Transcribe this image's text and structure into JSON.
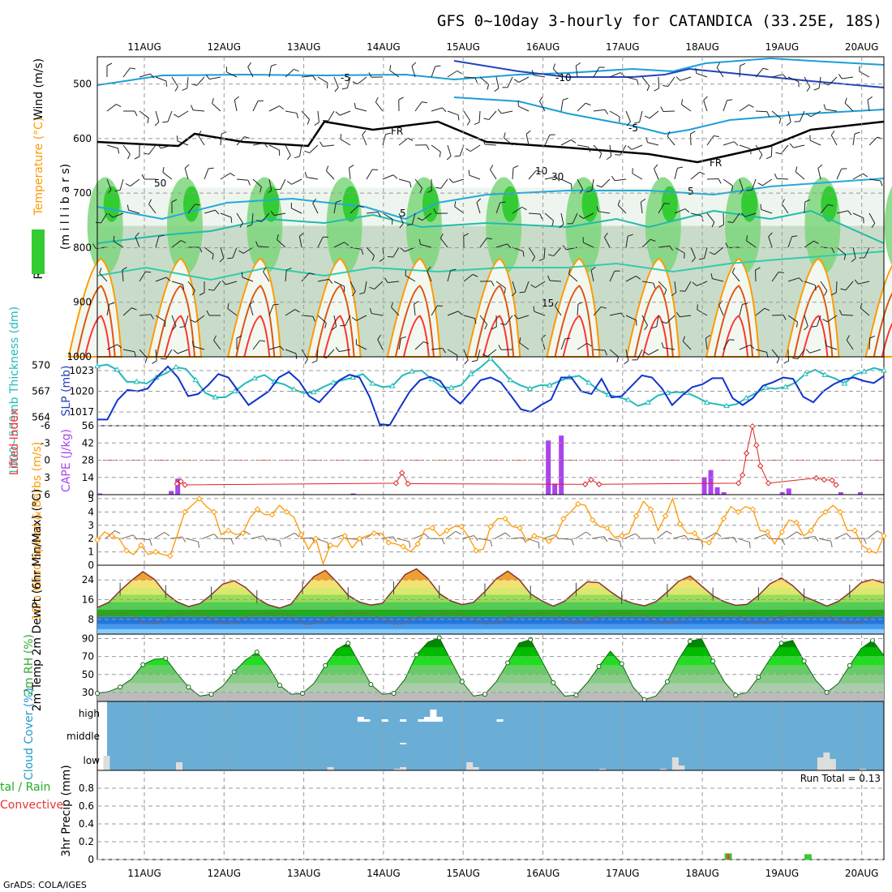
{
  "title": "GFS 0~10day 3-hourly for CATANDICA (33.25E, 18S)",
  "footer": "GrADS: COLA/IGES",
  "run_total": "Run Total = 0.13",
  "colors": {
    "green": "#33cc33",
    "red": "#ff3333",
    "orange": "#ff9900",
    "purple": "#aa44ee",
    "cyan": "#22bbbb",
    "blue": "#1133cc",
    "sky": "#6aaed6",
    "teal": "#3399cc"
  },
  "chart_data": [
    {
      "type": "heatmap",
      "title": "Wind / Temperature / RH cross-section",
      "dates": [
        "11AUG",
        "12AUG",
        "13AUG",
        "14AUG",
        "15AUG",
        "16AUG",
        "17AUG",
        "18AUG",
        "19AUG",
        "20AUG"
      ],
      "ylabel_parts": [
        "RH (%)",
        "Temperature (°C)",
        "Wind (m/s)"
      ],
      "ylabel_unit": "(m i l l i b a r s)",
      "y_ticks": [
        "500",
        "600",
        "700",
        "800",
        "900",
        "1000"
      ],
      "contour_labels": [
        "-5",
        "-10",
        "-5",
        "FR",
        "FR",
        "-5",
        "5",
        "10",
        "30",
        "50",
        "15"
      ],
      "ylim": [
        450,
        1000
      ]
    },
    {
      "type": "line",
      "ylabel_left": "1000~500mb Thickness (dm)",
      "ylabel_right": "SLP (mb)",
      "left_ticks": [
        "570",
        "567",
        "564"
      ],
      "right_ticks": [
        "1023",
        "1020",
        "1017"
      ],
      "series": [
        {
          "name": "SLP (mb)",
          "color": "#1133cc",
          "values": [
            1015.9,
            1015.9,
            1018.7,
            1020.2,
            1020.0,
            1020.4,
            1022.2,
            1023.6,
            1022.0,
            1019.3,
            1019.6,
            1020.9,
            1022.5,
            1022.0,
            1020.0,
            1018.0,
            1019.0,
            1020.0,
            1022.0,
            1022.8,
            1021.5,
            1019.3,
            1018.4,
            1020.0,
            1021.6,
            1022.4,
            1022.0,
            1019.2,
            1015.2,
            1015.1,
            1017.6,
            1020.0,
            1021.6,
            1022.1,
            1021.5,
            1019.4,
            1018.2,
            1019.9,
            1021.6,
            1022.0,
            1021.3,
            1019.4,
            1017.4,
            1017.0,
            1018.0,
            1018.8,
            1022.0,
            1022.0,
            1020.0,
            1019.6,
            1021.8,
            1019.1,
            1019.3,
            1020.8,
            1022.3,
            1022.0,
            1020.4,
            1018.0,
            1019.4,
            1020.6,
            1021.0,
            1021.9,
            1021.9,
            1019.0,
            1018.0,
            1019.0,
            1020.8,
            1021.3,
            1022.0,
            1021.8,
            1019.2,
            1018.4,
            1020.0,
            1021.0,
            1021.7,
            1022.0,
            1021.5,
            1021.2,
            1022.2
          ]
        },
        {
          "name": "Thickness (dm)",
          "color": "#22bbbb",
          "values": [
            569.9,
            570.1,
            569.5,
            568.1,
            568.1,
            567.9,
            568.6,
            569.1,
            569.8,
            569.6,
            568.3,
            566.8,
            566.3,
            566.3,
            567.0,
            567.9,
            568.5,
            568.9,
            568.1,
            567.8,
            567.2,
            566.8,
            566.9,
            567.5,
            568.0,
            568.3,
            568.6,
            569.0,
            567.9,
            567.5,
            567.6,
            568.8,
            569.3,
            569.4,
            568.4,
            567.5,
            567.4,
            567.7,
            569.0,
            569.8,
            570.8,
            569.6,
            568.3,
            567.7,
            567.3,
            567.7,
            567.7,
            568.2,
            568.6,
            568.8,
            568.0,
            567.1,
            566.6,
            566.3,
            566.0,
            565.3,
            565.7,
            566.5,
            566.8,
            566.9,
            566.8,
            566.3,
            565.7,
            565.5,
            565.3,
            565.5,
            566.2,
            566.8,
            567.4,
            567.3,
            567.5,
            568.0,
            569.0,
            569.5,
            568.9,
            568.5,
            567.9,
            568.9,
            569.3,
            569.7,
            569.4
          ]
        }
      ],
      "ylim_left": [
        563,
        571
      ],
      "ylim_right": [
        1015,
        1025
      ]
    },
    {
      "type": "bar",
      "ylabel_left": "Lifted Index",
      "ylabel_right": "CAPE (J/kg)",
      "left_ticks": [
        "-6",
        "-3",
        "0",
        "3",
        "6"
      ],
      "right_ticks": [
        "56",
        "42",
        "28",
        "14",
        "0"
      ],
      "cape_values": [
        1,
        0,
        0,
        0,
        0,
        0,
        0,
        0,
        0,
        0,
        0,
        3,
        13,
        0,
        0,
        0,
        0,
        0,
        0,
        0,
        0,
        0,
        0,
        0,
        0,
        0,
        0,
        0,
        0,
        0,
        0,
        0,
        0,
        0,
        0,
        0,
        0,
        0,
        0,
        1,
        0,
        0,
        0,
        0,
        0,
        0,
        0,
        0,
        0,
        0,
        0,
        0,
        0,
        0,
        0,
        0,
        0,
        0,
        0,
        0,
        0,
        0,
        0,
        0,
        0,
        0,
        0,
        0,
        0,
        44,
        9,
        48,
        0,
        0,
        0,
        0,
        0,
        0,
        0,
        0,
        0,
        0,
        0,
        0,
        0,
        0,
        0,
        0,
        0,
        0,
        0,
        0,
        0,
        14,
        20,
        6,
        2,
        0,
        0,
        0,
        0,
        0,
        0,
        0,
        0,
        2,
        5,
        0,
        0,
        0,
        0,
        0,
        0,
        0,
        2,
        0,
        0,
        2,
        0,
        0,
        0
      ],
      "li_points": [
        [
          4,
          4.1
        ],
        [
          4.2,
          3.7
        ],
        [
          4.4,
          4.3
        ],
        [
          15.0,
          4.0
        ],
        [
          15.3,
          2.2
        ],
        [
          15.6,
          4.1
        ],
        [
          24.5,
          4.2
        ],
        [
          24.8,
          3.4
        ],
        [
          25.2,
          4.2
        ],
        [
          32.2,
          4.0
        ],
        [
          32.4,
          2.6
        ],
        [
          32.6,
          -1.2
        ],
        [
          32.9,
          -5.9
        ],
        [
          33.1,
          -2.6
        ],
        [
          33.3,
          1.0
        ],
        [
          33.7,
          4.0
        ],
        [
          36.1,
          3.1
        ],
        [
          36.5,
          3.4
        ],
        [
          36.9,
          3.5
        ],
        [
          37.1,
          4.3
        ]
      ],
      "ylim_left": [
        6,
        -6
      ],
      "ylim_right": [
        0,
        56
      ]
    },
    {
      "type": "line",
      "ylabel_left": "10m Wind Speed & Barbs (m/s)",
      "y_ticks": [
        "5",
        "4",
        "3",
        "2",
        "1",
        "0"
      ],
      "series": [
        {
          "name": "10m Wind Speed",
          "color": "#ff9900",
          "values": [
            1.9,
            2.5,
            2.2,
            2.0,
            1.1,
            0.8,
            1.5,
            0.8,
            1.0,
            0.8,
            0.7,
            2.3,
            4.0,
            4.5,
            5.0,
            4.4,
            4.0,
            2.3,
            2.6,
            2.3,
            2.4,
            3.6,
            4.2,
            3.8,
            3.8,
            4.5,
            4.0,
            3.6,
            2.3,
            1.2,
            2.0,
            0.1,
            1.5,
            1.4,
            2.2,
            1.3,
            2.0,
            2.2,
            2.4,
            2.4,
            1.7,
            1.6,
            1.4,
            1.0,
            1.6,
            2.7,
            2.8,
            2.2,
            2.6,
            2.9,
            2.9,
            2.1,
            1.1,
            1.2,
            2.9,
            3.5,
            3.5,
            2.9,
            2.8,
            1.8,
            2.2,
            2.1,
            1.8,
            2.2,
            3.5,
            4.0,
            4.6,
            4.5,
            3.4,
            2.9,
            2.8,
            2.1,
            2.2,
            2.4,
            3.7,
            4.8,
            4.2,
            2.6,
            3.7,
            5.0,
            3.1,
            2.4,
            2.4,
            1.8,
            1.7,
            2.4,
            3.5,
            4.4,
            4.0,
            4.4,
            4.2,
            2.6,
            2.5,
            1.6,
            2.5,
            3.4,
            3.2,
            2.2,
            2.6,
            3.5,
            4.0,
            4.5,
            4.0,
            2.6,
            2.6,
            1.5,
            1.1,
            0.9,
            2.2
          ]
        }
      ]
    },
    {
      "type": "area",
      "ylabel_left": "2m Temp 2m DewPt (6hr Min/Max) (°C)",
      "y_ticks": [
        "24",
        "16",
        "8"
      ],
      "series": [
        {
          "name": "2m Temp",
          "values": [
            12.8,
            14.9,
            19.6,
            23.8,
            27.4,
            24.3,
            18.6,
            15.1,
            13.2,
            14.4,
            18.0,
            22.3,
            23.7,
            21.0,
            16.6,
            13.9,
            12.6,
            14.2,
            20.2,
            25.4,
            27.9,
            23.2,
            17.8,
            15.0,
            13.8,
            14.5,
            20.1,
            26.2,
            28.5,
            24.6,
            18.5,
            15.5,
            14.0,
            14.9,
            19.3,
            24.5,
            27.6,
            24.2,
            18.4,
            15.5,
            13.4,
            15.4,
            19.5,
            23.3,
            22.9,
            19.3,
            16.2,
            14.5,
            13.5,
            15.2,
            19.1,
            23.5,
            25.6,
            21.6,
            17.6,
            15.2,
            13.7,
            14.1,
            17.7,
            22.4,
            24.8,
            21.7,
            17.3,
            15.4,
            13.4,
            15.3,
            18.8,
            22.9,
            24.2,
            22.8
          ]
        },
        {
          "name": "2m DewPt",
          "values": [
            9.5,
            10.4,
            10.6,
            10.1,
            6.4,
            6.2,
            8.7,
            10.3,
            10.6,
            11.2,
            8.3,
            6.2,
            6.4,
            9.1,
            10.1,
            10.5,
            10.3,
            9.5,
            6.0,
            6.1,
            7.9,
            9.9,
            10.4,
            10.7,
            10.3,
            8.0,
            6.0,
            6.2,
            8.8,
            9.8,
            10.2,
            10.5,
            10.0,
            7.9,
            6.1,
            6.3,
            8.9,
            9.8,
            10.1,
            10.6,
            10.6,
            7.9,
            6.4,
            7.5,
            9.6,
            10.2,
            10.7,
            10.3,
            9.7,
            7.3,
            6.5,
            7.2,
            9.4,
            10.1,
            10.2,
            10.6,
            10.0,
            7.5,
            6.4,
            7.2,
            9.3,
            10.1,
            10.3,
            10.7,
            10.1,
            7.2,
            6.2,
            7.0,
            9.4,
            11.4
          ]
        }
      ],
      "ylim": [
        2,
        30
      ]
    },
    {
      "type": "area",
      "ylabel_left": "2m RH (%)",
      "y_ticks": [
        "90",
        "70",
        "50",
        "30"
      ],
      "values": [
        29,
        31,
        36,
        45,
        61,
        67,
        68,
        51,
        36,
        26,
        28,
        37,
        53,
        66,
        75,
        59,
        38,
        28,
        29,
        40,
        60,
        78,
        85,
        62,
        39,
        28,
        29,
        45,
        72,
        86,
        91,
        66,
        42,
        26,
        28,
        42,
        63,
        85,
        89,
        65,
        41,
        26,
        27,
        41,
        59,
        76,
        62,
        36,
        22,
        26,
        42,
        67,
        87,
        90,
        65,
        42,
        27,
        30,
        47,
        67,
        85,
        88,
        65,
        44,
        30,
        40,
        60,
        79,
        88,
        71
      ],
      "ylim": [
        20,
        95
      ]
    },
    {
      "type": "bar",
      "ylabel_left": "Cloud Cover (%)",
      "layer_labels": [
        "high",
        "middle",
        "low"
      ],
      "high_values": [
        0,
        0,
        0,
        0,
        0,
        0,
        0,
        0,
        0,
        0,
        0,
        0,
        0,
        0,
        0,
        0,
        0,
        0,
        0,
        0,
        0,
        0,
        0,
        0,
        0,
        0,
        0,
        0,
        0,
        0,
        0,
        0,
        0,
        0,
        0,
        0,
        0,
        0,
        0,
        0,
        0,
        0,
        0,
        2,
        1,
        0,
        0,
        1,
        0,
        0,
        1,
        0,
        0,
        1,
        2,
        5,
        2,
        0,
        0,
        0,
        0,
        0,
        0,
        0,
        0,
        0,
        1,
        0,
        0,
        0,
        0,
        0,
        0,
        0,
        0,
        0,
        0,
        0,
        0,
        0,
        0,
        0,
        0,
        0,
        0,
        0,
        0,
        0,
        0,
        0,
        0,
        0,
        0,
        0,
        0,
        0,
        0,
        0,
        0,
        0,
        0,
        0,
        0,
        0,
        0,
        0,
        0,
        0,
        0,
        0,
        0,
        0,
        0
      ],
      "middle_values": [
        0,
        0,
        0,
        0,
        0,
        0,
        0,
        0,
        0,
        0,
        0,
        0,
        0,
        0,
        0,
        0,
        0,
        0,
        0,
        0,
        0,
        0,
        0,
        0,
        0,
        0,
        0,
        0,
        0,
        0,
        0,
        0,
        0,
        0,
        0,
        0,
        0,
        0,
        0,
        0,
        0,
        0,
        0,
        0,
        0,
        0,
        0,
        0,
        0,
        0,
        2,
        0,
        0,
        0,
        0,
        0,
        0,
        0,
        0,
        0,
        0,
        0,
        0,
        0,
        0,
        0,
        0,
        0,
        0,
        0,
        0,
        0,
        0,
        0,
        0,
        0,
        0,
        0,
        0,
        0,
        0,
        0,
        0,
        0,
        0,
        0,
        0,
        0,
        0,
        0,
        0,
        0,
        0,
        0,
        0,
        0,
        0,
        0,
        0,
        0,
        0,
        0,
        0,
        0,
        0,
        0,
        0,
        0,
        0,
        0,
        0,
        0,
        0,
        0,
        0
      ],
      "low_values": [
        0,
        9,
        0,
        0,
        0,
        0,
        0,
        0,
        0,
        0,
        0,
        0,
        0,
        5,
        0,
        0,
        0,
        0,
        0,
        0,
        0,
        0,
        0,
        0,
        0,
        0,
        0,
        0,
        0,
        0,
        0,
        0,
        0,
        0,
        0,
        0,
        0,
        0,
        2,
        0,
        0,
        0,
        0,
        0,
        0,
        0,
        0,
        0,
        0,
        1,
        2,
        0,
        0,
        0,
        0,
        0,
        0,
        0,
        0,
        0,
        0,
        5,
        2,
        0,
        0,
        0,
        0,
        0,
        0,
        0,
        0,
        0,
        0,
        0,
        0,
        0,
        0,
        0,
        0,
        0,
        0,
        0,
        0,
        1,
        0,
        0,
        0,
        0,
        0,
        0,
        0,
        0,
        0,
        1,
        0,
        8,
        3,
        0,
        0,
        0,
        0,
        0,
        0,
        0,
        0,
        0,
        0,
        0,
        0,
        0,
        0,
        0,
        0,
        0,
        0,
        0,
        0,
        0,
        0,
        8,
        11,
        7,
        0,
        0,
        0,
        0,
        1,
        0,
        0,
        0
      ],
      "ylim": [
        0,
        100
      ]
    },
    {
      "type": "bar",
      "ylabel_left": "3hr Precip (mm)",
      "legend_left": [
        "tal / Rain",
        "Convective"
      ],
      "y_ticks": [
        "0.8",
        "0.6",
        "0.4",
        "0.2",
        "0"
      ],
      "bars": [
        {
          "date_index": 7.3,
          "total": 0.07,
          "convective": 0.06
        },
        {
          "date_index": 8.3,
          "total": 0.06,
          "convective": 0
        }
      ],
      "ylim": [
        0,
        1.0
      ]
    }
  ]
}
